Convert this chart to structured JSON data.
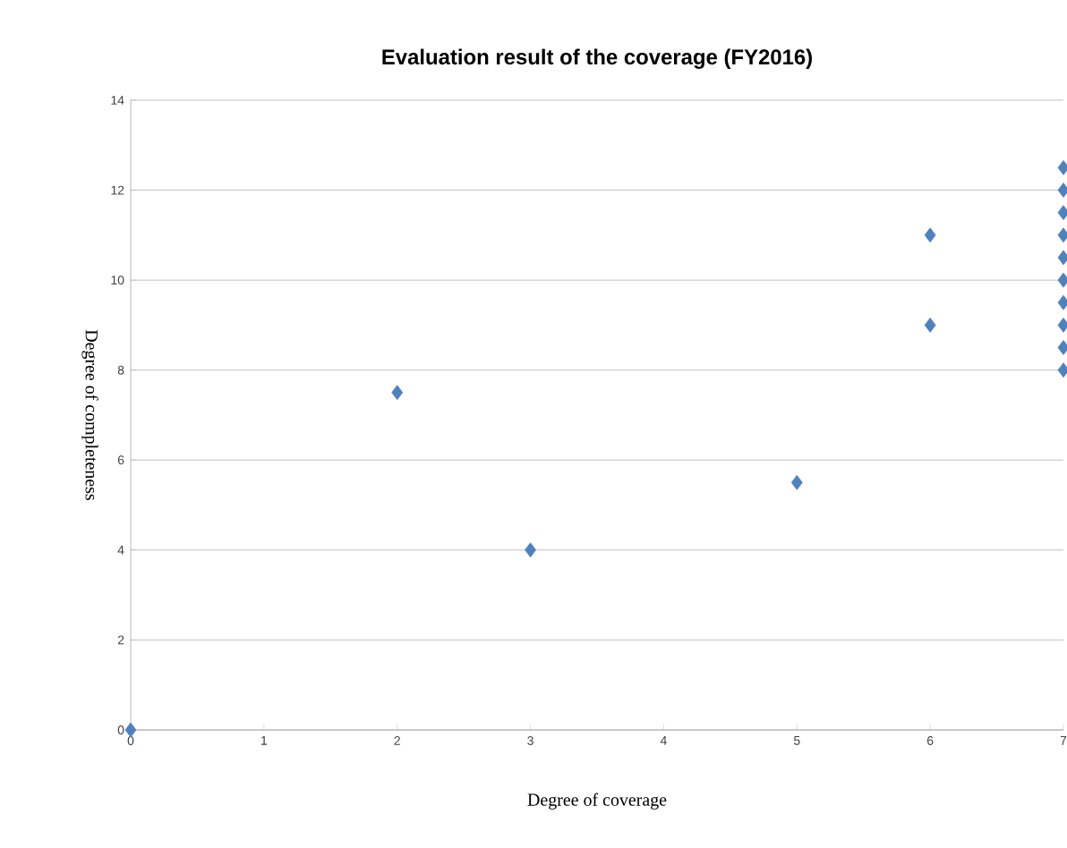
{
  "chart_data": {
    "type": "scatter",
    "title": "Evaluation result of the coverage (FY2016)",
    "xlabel": "Degree of coverage",
    "ylabel": "Degree of completeness",
    "x": [
      0,
      2,
      3,
      5,
      6,
      6,
      7,
      7,
      7,
      7,
      7,
      7,
      7,
      7,
      7,
      7
    ],
    "values": [
      0,
      7.5,
      4,
      5.5,
      11,
      9,
      8,
      8.5,
      9,
      9.5,
      10,
      10.5,
      11,
      11.5,
      12,
      12.5
    ],
    "color": "#4f81bd",
    "marker": "diamond",
    "grid": "y",
    "xlim": [
      0,
      7
    ],
    "ylim": [
      0,
      14
    ],
    "xticks": [
      0,
      1,
      2,
      3,
      4,
      5,
      6,
      7
    ],
    "yticks": [
      0,
      2,
      4,
      6,
      8,
      10,
      12,
      14
    ]
  }
}
